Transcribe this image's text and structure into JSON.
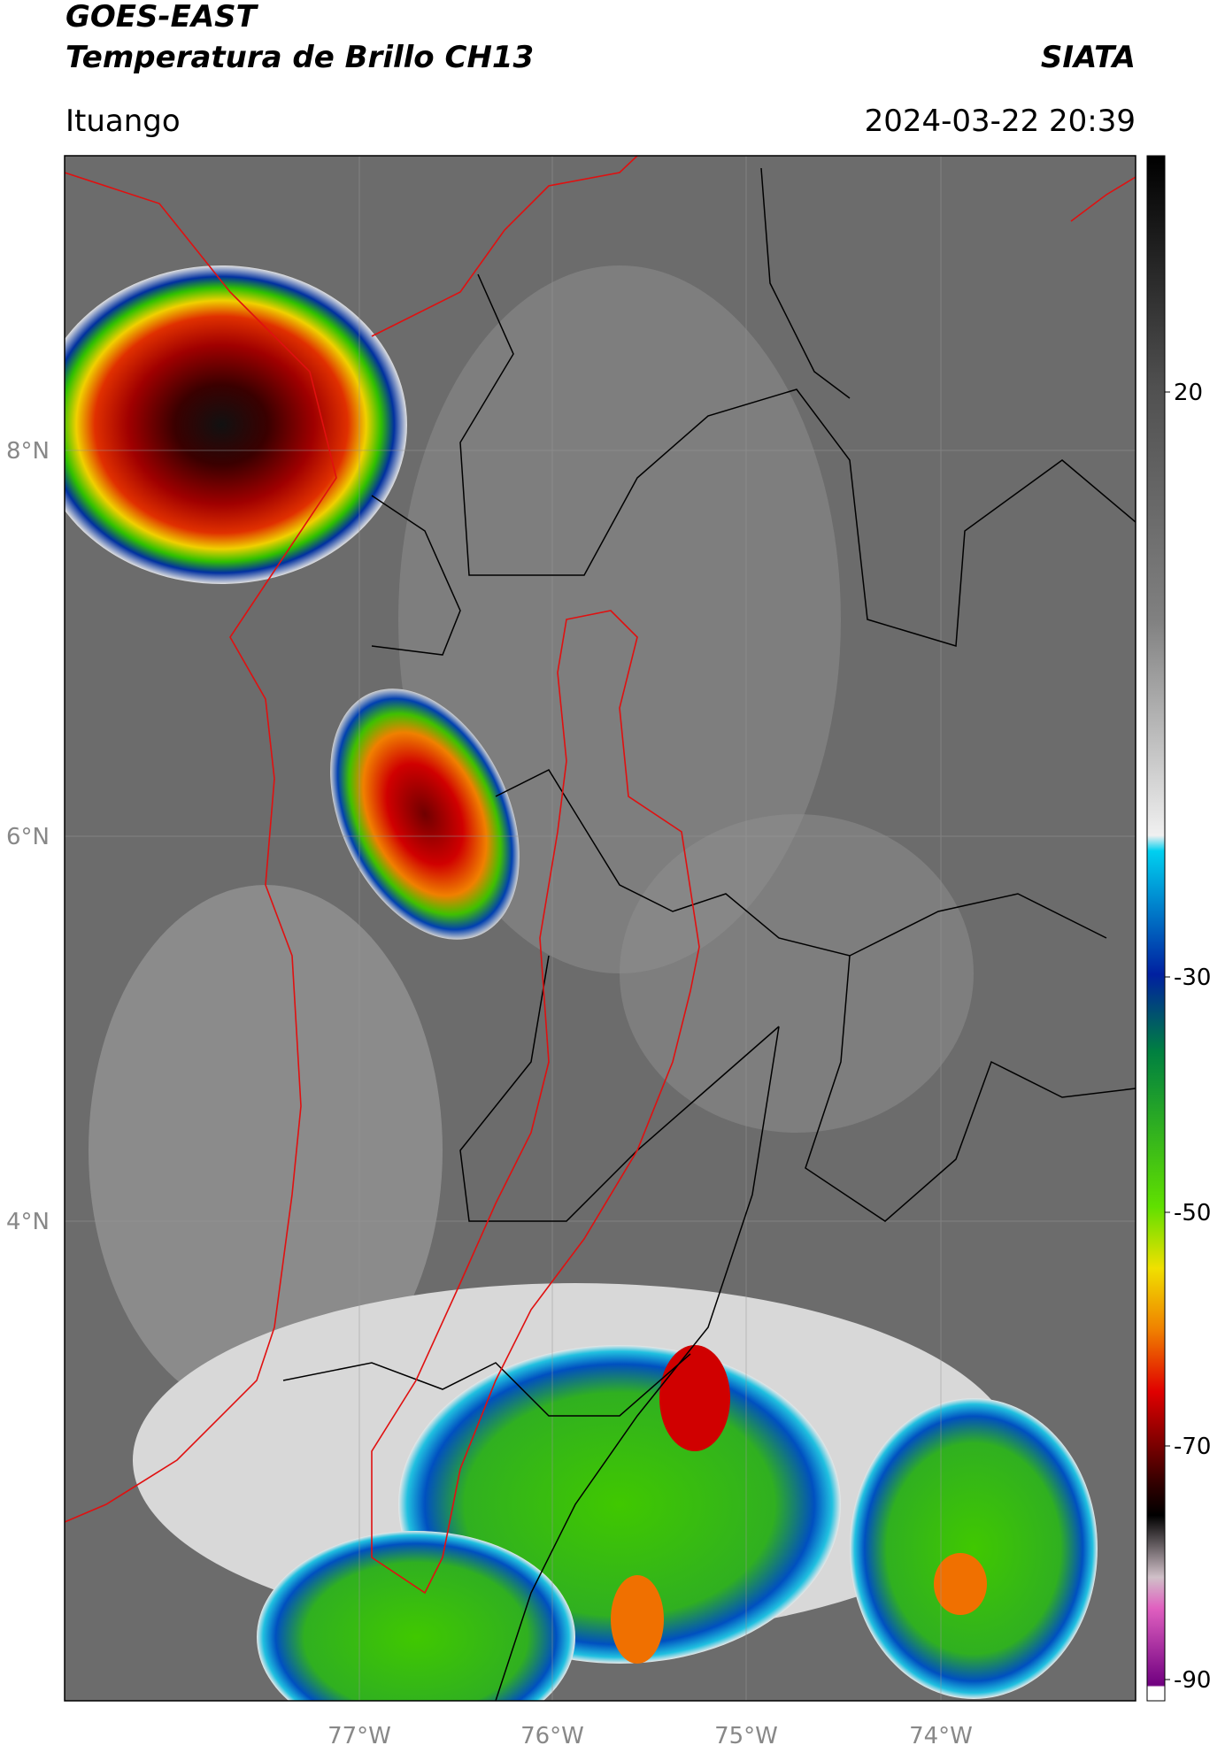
{
  "header": {
    "title": "GOES-EAST",
    "subtitle": "Temperatura de Brillo CH13",
    "source": "SIATA",
    "location": "Ituango",
    "datetime": "2024-03-22 20:39"
  },
  "map": {
    "lat_labels": [
      "8°N",
      "6°N",
      "4°N"
    ],
    "lon_labels": [
      "77°W",
      "76°W",
      "75°W",
      "74°W"
    ]
  },
  "colorbar": {
    "ticks": [
      "20",
      "-30",
      "-50",
      "-70",
      "-90"
    ]
  }
}
